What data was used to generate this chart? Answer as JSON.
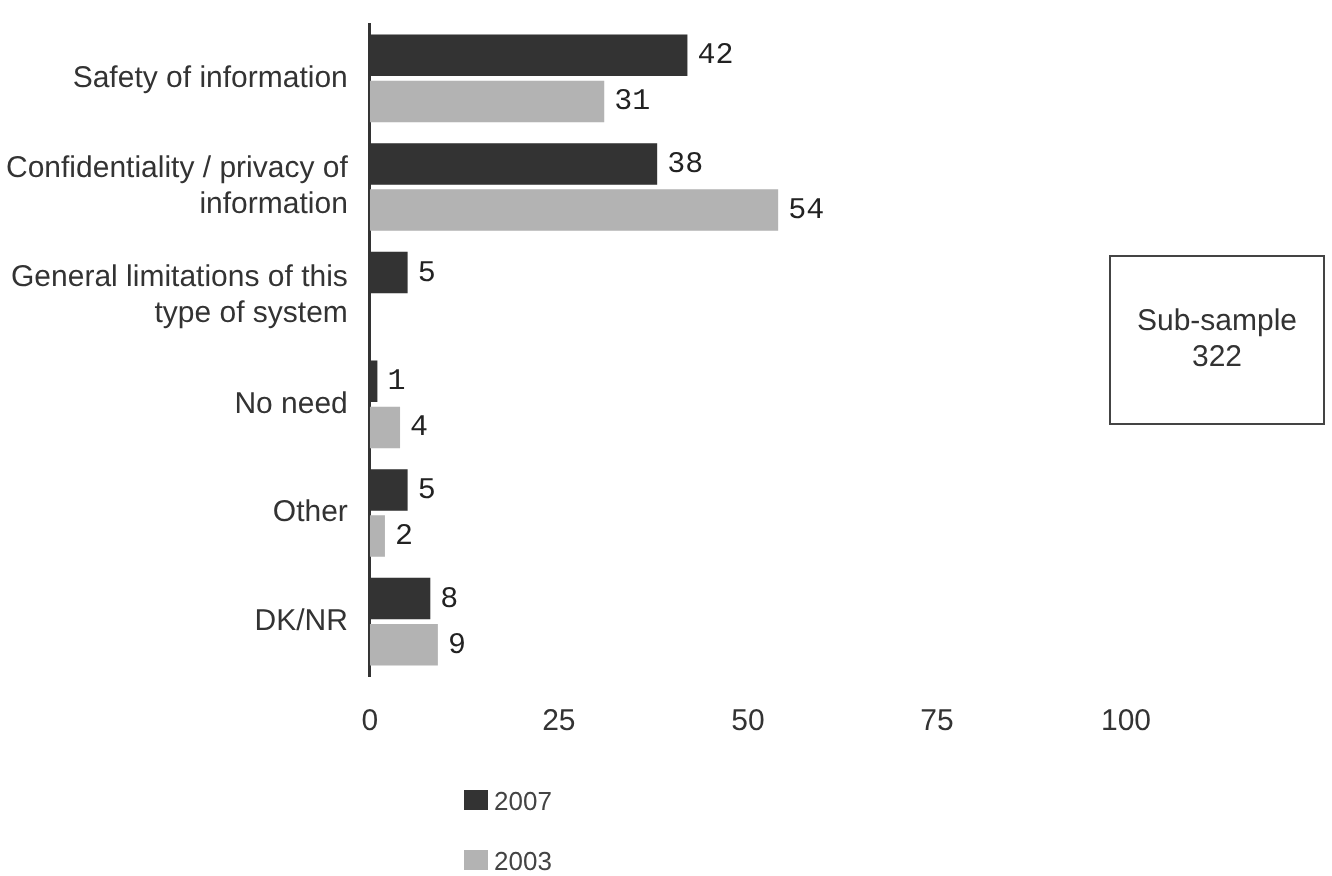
{
  "chart_data": {
    "type": "bar",
    "orientation": "horizontal",
    "categories": [
      "Safety of information",
      "Confidentiality / privacy of information",
      "General limitations of this type of system",
      "No need",
      "Other",
      "DK/NR"
    ],
    "series": [
      {
        "name": "2007",
        "color": "#333333",
        "values": [
          42,
          38,
          5,
          1,
          5,
          8
        ]
      },
      {
        "name": "2003",
        "color": "#b3b3b3",
        "values": [
          31,
          54,
          null,
          4,
          2,
          9
        ]
      }
    ],
    "xlim": [
      0,
      100
    ],
    "xticks": [
      0,
      25,
      50,
      75,
      100
    ],
    "grid": false,
    "legend": "bottom left",
    "data_labels": true,
    "annotations": [
      "Sub-sample\n322"
    ]
  }
}
